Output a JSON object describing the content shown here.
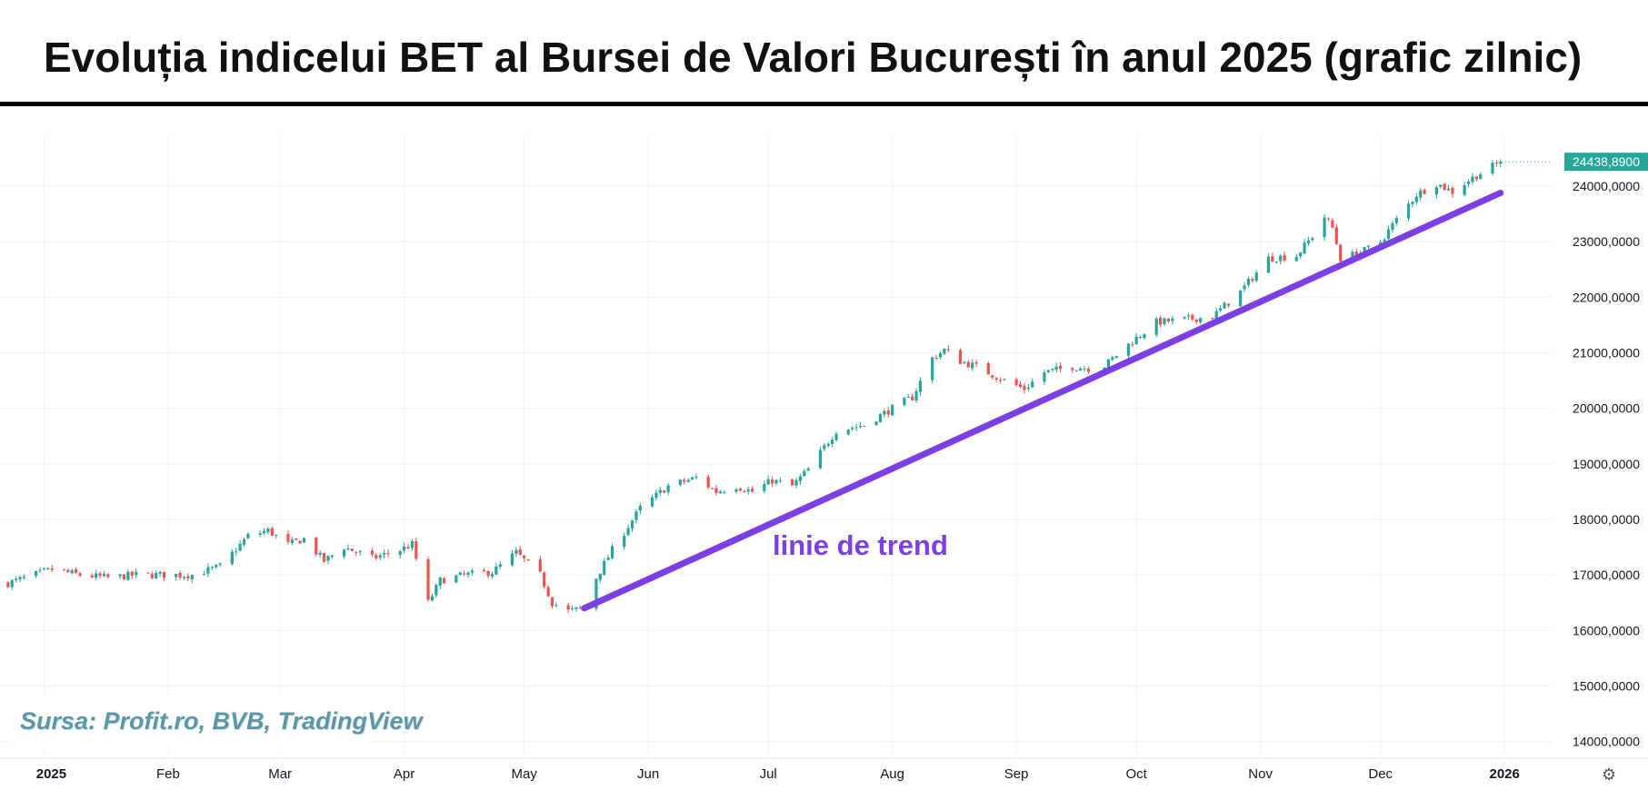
{
  "title": "Evoluția indicelui BET al Bursei de Valori București în anul 2025 (grafic zilnic)",
  "source": "Sursa: Profit.ro, BVB, TradingView",
  "icons": {
    "settings": "gear-icon"
  },
  "colors": {
    "up": "#26a69a",
    "down": "#ef5350",
    "trend": "#7b3fe4",
    "grid": "#f0f3fa",
    "price_label_bg": "#26a69a"
  },
  "chart_data": {
    "type": "candlestick",
    "x_tick_labels": [
      "2025",
      "Feb",
      "Mar",
      "Apr",
      "May",
      "Jun",
      "Jul",
      "Aug",
      "Sep",
      "Oct",
      "Nov",
      "Dec",
      "2026"
    ],
    "x_ticks": [
      "2025-01-01",
      "2025-02-01",
      "2025-03-01",
      "2025-04-01",
      "2025-05-01",
      "2025-06-01",
      "2025-07-01",
      "2025-08-01",
      "2025-09-01",
      "2025-10-01",
      "2025-11-01",
      "2025-12-01",
      "2026-01-01"
    ],
    "y_ticks": [
      14000,
      15000,
      16000,
      17000,
      18000,
      19000,
      20000,
      21000,
      22000,
      23000,
      24000
    ],
    "y_tick_labels": [
      "14000,0000",
      "15000,0000",
      "16000,0000",
      "17000,0000",
      "18000,0000",
      "19000,0000",
      "20000,0000",
      "21000,0000",
      "22000,0000",
      "23000,0000",
      "24000,0000"
    ],
    "ylim": [
      13700,
      24900
    ],
    "xlim": [
      "2024-12-21",
      "2026-01-13"
    ],
    "last_price_label": "24438,8900",
    "last_price": 24438.89,
    "trend_line": {
      "label": "linie de trend",
      "start": {
        "x": "2025-05-16",
        "y": 16400
      },
      "end": {
        "x": "2025-12-31",
        "y": 23880
      }
    },
    "series": [
      {
        "closes": [
          {
            "date": "2024-12-23",
            "close": 16850
          },
          {
            "date": "2025-01-03",
            "close": 17100
          },
          {
            "date": "2025-01-10",
            "close": 17000
          },
          {
            "date": "2025-01-17",
            "close": 16950
          },
          {
            "date": "2025-01-24",
            "close": 17000
          },
          {
            "date": "2025-01-31",
            "close": 17000
          },
          {
            "date": "2025-02-07",
            "close": 17000
          },
          {
            "date": "2025-02-14",
            "close": 17150
          },
          {
            "date": "2025-02-21",
            "close": 17700
          },
          {
            "date": "2025-02-26",
            "close": 17800
          },
          {
            "date": "2025-03-03",
            "close": 17550
          },
          {
            "date": "2025-03-07",
            "close": 17650
          },
          {
            "date": "2025-03-12",
            "close": 17250
          },
          {
            "date": "2025-03-17",
            "close": 17500
          },
          {
            "date": "2025-03-24",
            "close": 17300
          },
          {
            "date": "2025-03-31",
            "close": 17450
          },
          {
            "date": "2025-04-03",
            "close": 17550
          },
          {
            "date": "2025-04-07",
            "close": 16500
          },
          {
            "date": "2025-04-10",
            "close": 16900
          },
          {
            "date": "2025-04-16",
            "close": 17000
          },
          {
            "date": "2025-04-23",
            "close": 17050
          },
          {
            "date": "2025-04-29",
            "close": 17400
          },
          {
            "date": "2025-05-05",
            "close": 17000
          },
          {
            "date": "2025-05-08",
            "close": 16500
          },
          {
            "date": "2025-05-12",
            "close": 16350
          },
          {
            "date": "2025-05-16",
            "close": 16400
          },
          {
            "date": "2025-05-19",
            "close": 16950
          },
          {
            "date": "2025-05-23",
            "close": 17450
          },
          {
            "date": "2025-05-30",
            "close": 18200
          },
          {
            "date": "2025-06-06",
            "close": 18600
          },
          {
            "date": "2025-06-13",
            "close": 18750
          },
          {
            "date": "2025-06-18",
            "close": 18500
          },
          {
            "date": "2025-06-23",
            "close": 18600
          },
          {
            "date": "2025-06-27",
            "close": 18500
          },
          {
            "date": "2025-07-02",
            "close": 18700
          },
          {
            "date": "2025-07-07",
            "close": 18600
          },
          {
            "date": "2025-07-11",
            "close": 18900
          },
          {
            "date": "2025-07-18",
            "close": 19600
          },
          {
            "date": "2025-07-25",
            "close": 19700
          },
          {
            "date": "2025-08-01",
            "close": 20000
          },
          {
            "date": "2025-08-06",
            "close": 20200
          },
          {
            "date": "2025-08-11",
            "close": 20900
          },
          {
            "date": "2025-08-14",
            "close": 21050
          },
          {
            "date": "2025-08-18",
            "close": 20850
          },
          {
            "date": "2025-08-22",
            "close": 20750
          },
          {
            "date": "2025-08-29",
            "close": 20500
          },
          {
            "date": "2025-09-03",
            "close": 20350
          },
          {
            "date": "2025-09-08",
            "close": 20650
          },
          {
            "date": "2025-09-15",
            "close": 20750
          },
          {
            "date": "2025-09-22",
            "close": 20700
          },
          {
            "date": "2025-09-29",
            "close": 21150
          },
          {
            "date": "2025-10-06",
            "close": 21550
          },
          {
            "date": "2025-10-13",
            "close": 21600
          },
          {
            "date": "2025-10-20",
            "close": 21650
          },
          {
            "date": "2025-10-27",
            "close": 22100
          },
          {
            "date": "2025-11-03",
            "close": 22700
          },
          {
            "date": "2025-11-10",
            "close": 22750
          },
          {
            "date": "2025-11-14",
            "close": 23100
          },
          {
            "date": "2025-11-17",
            "close": 23450
          },
          {
            "date": "2025-11-19",
            "close": 23250
          },
          {
            "date": "2025-11-21",
            "close": 22700
          },
          {
            "date": "2025-11-26",
            "close": 22800
          },
          {
            "date": "2025-12-01",
            "close": 23000
          },
          {
            "date": "2025-12-05",
            "close": 23400
          },
          {
            "date": "2025-12-10",
            "close": 23850
          },
          {
            "date": "2025-12-15",
            "close": 24050
          },
          {
            "date": "2025-12-19",
            "close": 23900
          },
          {
            "date": "2025-12-24",
            "close": 24150
          },
          {
            "date": "2025-12-31",
            "close": 24438.89
          }
        ]
      }
    ]
  }
}
